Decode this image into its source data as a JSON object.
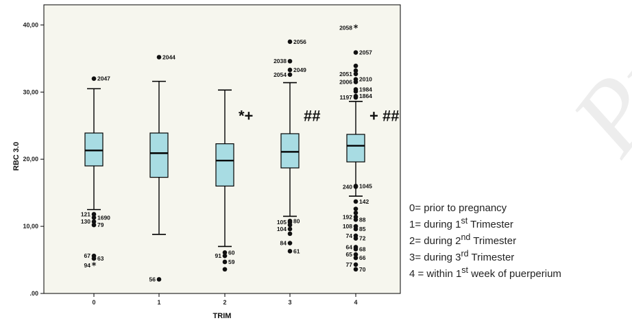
{
  "chart_data": {
    "type": "boxplot",
    "xlabel": "TRIM",
    "ylabel": "RBC 3.0",
    "categories": [
      "0",
      "1",
      "2",
      "3",
      "4"
    ],
    "ylim": [
      0,
      43
    ],
    "yticks": [
      "40,00",
      "30,00",
      "20,00",
      "10,00",
      ".00"
    ],
    "ytick_values": [
      40,
      30,
      20,
      10,
      0
    ],
    "box_color": "#a8dce3",
    "plot_bg": "#f6f6ee",
    "boxes": [
      {
        "category": "0",
        "whisker_low": 12.5,
        "q1": 19.0,
        "median": 21.3,
        "q3": 23.9,
        "whisker_high": 30.5
      },
      {
        "category": "1",
        "whisker_low": 8.8,
        "q1": 17.3,
        "median": 20.9,
        "q3": 23.9,
        "whisker_high": 31.6
      },
      {
        "category": "2",
        "whisker_low": 7.0,
        "q1": 16.0,
        "median": 19.8,
        "q3": 22.3,
        "whisker_high": 30.3
      },
      {
        "category": "3",
        "whisker_low": 11.5,
        "q1": 18.7,
        "median": 21.1,
        "q3": 23.8,
        "whisker_high": 31.4
      },
      {
        "category": "4",
        "whisker_low": 14.5,
        "q1": 19.6,
        "median": 22.0,
        "q3": 23.7,
        "whisker_high": 28.6
      }
    ],
    "outliers": [
      {
        "category": "0",
        "y": 32.0,
        "label": "2047",
        "marker": "dot"
      },
      {
        "category": "0",
        "y": 11.8,
        "label": "121",
        "marker": "dot"
      },
      {
        "category": "0",
        "y": 11.3,
        "label": "1690",
        "marker": "dot"
      },
      {
        "category": "0",
        "y": 10.7,
        "label": "130",
        "marker": "dot"
      },
      {
        "category": "0",
        "y": 10.2,
        "label": "79",
        "marker": "dot"
      },
      {
        "category": "0",
        "y": 5.6,
        "label": "67",
        "marker": "dot"
      },
      {
        "category": "0",
        "y": 5.2,
        "label": "63",
        "marker": "dot"
      },
      {
        "category": "0",
        "y": 4.2,
        "label": "94",
        "marker": "star"
      },
      {
        "category": "1",
        "y": 35.2,
        "label": "2044",
        "marker": "dot"
      },
      {
        "category": "1",
        "y": 2.1,
        "label": "56",
        "marker": "dot"
      },
      {
        "category": "2",
        "y": 6.1,
        "label": "60",
        "marker": "dot"
      },
      {
        "category": "2",
        "y": 5.6,
        "label": "91",
        "marker": "dot"
      },
      {
        "category": "2",
        "y": 4.7,
        "label": "59",
        "marker": "dot"
      },
      {
        "category": "2",
        "y": 3.6,
        "label": "",
        "marker": "dot"
      },
      {
        "category": "3",
        "y": 37.5,
        "label": "2056",
        "marker": "dot"
      },
      {
        "category": "3",
        "y": 34.6,
        "label": "2038",
        "marker": "dot"
      },
      {
        "category": "3",
        "y": 33.3,
        "label": "2049",
        "marker": "dot"
      },
      {
        "category": "3",
        "y": 32.6,
        "label": "2054",
        "marker": "dot"
      },
      {
        "category": "3",
        "y": 10.8,
        "label": "80",
        "marker": "dot"
      },
      {
        "category": "3",
        "y": 10.6,
        "label": "105",
        "marker": "dot"
      },
      {
        "category": "3",
        "y": 10.2,
        "label": "",
        "marker": "dot"
      },
      {
        "category": "3",
        "y": 9.6,
        "label": "104",
        "marker": "dot"
      },
      {
        "category": "3",
        "y": 8.9,
        "label": "",
        "marker": "dot"
      },
      {
        "category": "3",
        "y": 7.5,
        "label": "84",
        "marker": "dot"
      },
      {
        "category": "3",
        "y": 6.3,
        "label": "61",
        "marker": "dot"
      },
      {
        "category": "4",
        "y": 39.6,
        "label": "2058",
        "marker": "star"
      },
      {
        "category": "4",
        "y": 35.9,
        "label": "2057",
        "marker": "dot"
      },
      {
        "category": "4",
        "y": 33.9,
        "label": "",
        "marker": "dot"
      },
      {
        "category": "4",
        "y": 33.2,
        "label": "",
        "marker": "dot"
      },
      {
        "category": "4",
        "y": 32.7,
        "label": "2051",
        "marker": "dot"
      },
      {
        "category": "4",
        "y": 31.9,
        "label": "2010",
        "marker": "dot"
      },
      {
        "category": "4",
        "y": 31.5,
        "label": "2006",
        "marker": "dot"
      },
      {
        "category": "4",
        "y": 30.4,
        "label": "1984",
        "marker": "dot"
      },
      {
        "category": "4",
        "y": 30.1,
        "label": "",
        "marker": "dot"
      },
      {
        "category": "4",
        "y": 29.4,
        "label": "1864",
        "marker": "dot"
      },
      {
        "category": "4",
        "y": 29.2,
        "label": "1197",
        "marker": "dot"
      },
      {
        "category": "4",
        "y": 16.0,
        "label": "1045",
        "marker": "dot"
      },
      {
        "category": "4",
        "y": 15.9,
        "label": "240",
        "marker": "dot"
      },
      {
        "category": "4",
        "y": 13.7,
        "label": "142",
        "marker": "dot"
      },
      {
        "category": "4",
        "y": 12.6,
        "label": "",
        "marker": "dot"
      },
      {
        "category": "4",
        "y": 12.0,
        "label": "",
        "marker": "dot"
      },
      {
        "category": "4",
        "y": 11.4,
        "label": "192",
        "marker": "dot"
      },
      {
        "category": "4",
        "y": 11.0,
        "label": "88",
        "marker": "dot"
      },
      {
        "category": "4",
        "y": 10.0,
        "label": "108",
        "marker": "dot"
      },
      {
        "category": "4",
        "y": 9.6,
        "label": "85",
        "marker": "dot"
      },
      {
        "category": "4",
        "y": 8.6,
        "label": "74",
        "marker": "dot"
      },
      {
        "category": "4",
        "y": 8.2,
        "label": "72",
        "marker": "dot"
      },
      {
        "category": "4",
        "y": 6.9,
        "label": "64",
        "marker": "dot"
      },
      {
        "category": "4",
        "y": 6.6,
        "label": "68",
        "marker": "dot"
      },
      {
        "category": "4",
        "y": 5.8,
        "label": "65",
        "marker": "dot"
      },
      {
        "category": "4",
        "y": 5.3,
        "label": "66",
        "marker": "dot"
      },
      {
        "category": "4",
        "y": 4.3,
        "label": "77",
        "marker": "dot"
      },
      {
        "category": "4",
        "y": 3.6,
        "label": "70",
        "marker": "dot"
      }
    ],
    "annotations": [
      {
        "category": "2",
        "y": 26.5,
        "text": "*+"
      },
      {
        "category": "3",
        "y": 26.5,
        "text": "##"
      },
      {
        "category": "4",
        "y": 26.5,
        "text": "+ ##"
      }
    ]
  },
  "legend": {
    "line0": {
      "pre": "0= prior to pregnancy",
      "sup": "",
      "post": ""
    },
    "line1": {
      "pre": "1= during 1",
      "sup": "st",
      "post": " Trimester"
    },
    "line2": {
      "pre": "2= during 2",
      "sup": "nd",
      "post": " Trimester"
    },
    "line3": {
      "pre": "3= during 3",
      "sup": "rd",
      "post": " Trimester"
    },
    "line4": {
      "pre": "4 = within 1",
      "sup": "st",
      "post": " week of puerperium"
    }
  },
  "watermark": "Proof"
}
